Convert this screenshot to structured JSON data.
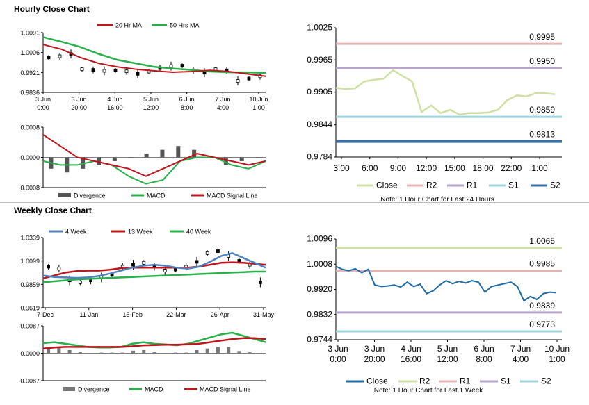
{
  "hourly": {
    "title": "Hourly Close Chart",
    "price": {
      "legend": [
        "20 Hr MA",
        "50 Hrs MA"
      ],
      "colors": {
        "ma20": "#c0141c",
        "ma50": "#28b04a",
        "bars": "#000000"
      },
      "yticks": [
        "1.0091",
        "1.0006",
        "0.9921",
        "0.9836"
      ],
      "ylim": [
        0.9836,
        1.0091
      ],
      "xticks": [
        [
          "3 Jun",
          "0:00"
        ],
        [
          "3 Jun",
          "20:00"
        ],
        [
          "4 Jun",
          "16:00"
        ],
        [
          "5 Jun",
          "12:00"
        ],
        [
          "6 Jun",
          "8:00"
        ],
        [
          "7 Jun",
          "4:00"
        ],
        [
          "10 Jun",
          "1:00"
        ]
      ],
      "ma50": [
        1.0072,
        1.0052,
        1.003,
        1.0,
        0.9975,
        0.996,
        0.9945,
        0.9938,
        0.9932,
        0.9925,
        0.9922,
        0.9921,
        0.992
      ],
      "ma20": [
        1.004,
        1.002,
        0.9985,
        0.996,
        0.9945,
        0.9935,
        0.9928,
        0.9922,
        0.9925,
        0.993,
        0.9925,
        0.9915,
        0.9905
      ],
      "close": [
        0.9985,
        0.999,
        1.0,
        0.9935,
        0.9932,
        0.9928,
        0.993,
        0.9926,
        0.9915,
        0.9925,
        0.994,
        0.9948,
        0.995,
        0.993,
        0.992,
        0.9935,
        0.993,
        0.9885,
        0.9895,
        0.9905
      ]
    },
    "macd": {
      "yticks": [
        "0.0008",
        "0.0000",
        "-0.0008"
      ],
      "ylim": [
        -0.0008,
        0.0008
      ],
      "legend": [
        "Divergence",
        "MACD",
        "MACD Signal Line"
      ],
      "colors": {
        "div": "#555555",
        "macd": "#28b04a",
        "signal": "#c0141c"
      },
      "macd": [
        -0.0001,
        -0.0002,
        -0.0002,
        -0.0001,
        -0.0002,
        -0.0005,
        -0.0007,
        -0.0006,
        -0.0001,
        0.0,
        0.0,
        -0.0002,
        -0.0003,
        -0.0001
      ],
      "signal": [
        0.0006,
        0.0003,
        0.0,
        -0.0001,
        -0.0002,
        -0.0003,
        -0.0005,
        -0.0003,
        -0.0001,
        0.0001,
        0.0,
        -0.0001,
        -0.0002,
        -0.0001
      ],
      "divergence": [
        -0.0003,
        -0.0004,
        -0.0003,
        -0.0002,
        -0.0001,
        0.0,
        0.0001,
        0.0002,
        0.0003,
        0.0002,
        0.0,
        -0.0002,
        -0.0001,
        0.0
      ]
    }
  },
  "day": {
    "yticks": [
      "1.0025",
      "0.9965",
      "0.9905",
      "0.9844",
      "0.9784"
    ],
    "ylim": [
      0.9784,
      1.0025
    ],
    "xticks": [
      "3:00",
      "6:00",
      "9:00",
      "12:00",
      "15:00",
      "18:00",
      "22:00",
      "1:00"
    ],
    "levels": [
      {
        "name": "R2",
        "value": 0.9995,
        "label": "0.9995",
        "color": "#e6b4b4"
      },
      {
        "name": "R1",
        "value": 0.995,
        "label": "0.9950",
        "color": "#b9a6cc"
      },
      {
        "name": "S1",
        "value": 0.9859,
        "label": "0.9859",
        "color": "#9fd3dd"
      },
      {
        "name": "S2",
        "value": 0.9813,
        "label": "0.9813",
        "color": "#3a6ea5"
      }
    ],
    "close_color": "#cfe0a4",
    "close": [
      0.9913,
      0.9911,
      0.9912,
      0.9925,
      0.9928,
      0.993,
      0.9946,
      0.9935,
      0.9925,
      0.9868,
      0.988,
      0.9866,
      0.9872,
      0.9863,
      0.9866,
      0.9866,
      0.9867,
      0.9872,
      0.989,
      0.9899,
      0.9897,
      0.9903,
      0.9903,
      0.9901
    ],
    "legend": [
      "Close",
      "R2",
      "R1",
      "S1",
      "S2"
    ],
    "note": "Note: 1 Hour Chart for Last 24 Hours"
  },
  "weekly": {
    "title": "Weekly Close Chart",
    "price": {
      "legend": [
        "4 Week",
        "13 Week",
        "40 Week"
      ],
      "colors": {
        "w4": "#4f81bd",
        "w13": "#c0141c",
        "w40": "#28b04a",
        "bars": "#000000"
      },
      "yticks": [
        "1.0339",
        "1.0099",
        "0.9859",
        "0.9619"
      ],
      "ylim": [
        0.9619,
        1.0339
      ],
      "xticks": [
        "7-Dec",
        "11-Jan",
        "15-Feb",
        "22-Mar",
        "26-Apr",
        "31-May"
      ],
      "w4": [
        0.995,
        0.9935,
        0.993,
        0.9925,
        0.993,
        0.9945,
        0.997,
        1.0,
        1.003,
        1.005,
        1.006,
        1.005,
        1.003,
        1.002,
        1.004,
        1.009,
        1.015,
        1.018,
        1.013,
        1.008,
        1.003
      ],
      "w13": [
        0.992,
        0.995,
        0.998,
        0.9995,
        1.0,
        1.0,
        1.001,
        1.0025,
        1.003,
        1.003,
        1.003,
        1.003,
        1.003,
        1.003,
        1.004,
        1.006,
        1.008,
        1.0085,
        1.008,
        1.007,
        1.006
      ],
      "w40": [
        0.988,
        0.989,
        0.99,
        0.991,
        0.9915,
        0.992,
        0.9925,
        0.993,
        0.9935,
        0.994,
        0.9945,
        0.995,
        0.9955,
        0.996,
        0.9965,
        0.997,
        0.9975,
        0.998,
        0.9985,
        0.999,
        0.999
      ],
      "close": [
        1.004,
        1.002,
        0.99,
        0.988,
        0.99,
        0.993,
        0.996,
        1.004,
        1.006,
        1.008,
        1.004,
        1.0,
        1.001,
        1.004,
        1.009,
        1.018,
        1.02,
        1.015,
        1.01,
        1.006,
        0.988
      ]
    },
    "macd": {
      "yticks": [
        "0.0087",
        "0.0000",
        "-0.0087"
      ],
      "ylim": [
        -0.0087,
        0.0087
      ],
      "legend": [
        "Divergence",
        "MACD",
        "MACD Signal Line"
      ],
      "colors": {
        "div": "#777777",
        "macd": "#28b04a",
        "signal": "#c0141c"
      },
      "macd": [
        0.0032,
        0.0035,
        0.003,
        0.0025,
        0.002,
        0.0018,
        0.0018,
        0.002,
        0.003,
        0.0035,
        0.003,
        0.0028,
        0.0025,
        0.003,
        0.004,
        0.005,
        0.006,
        0.0065,
        0.0055,
        0.0045,
        0.0035
      ],
      "signal": [
        0.0015,
        0.0018,
        0.002,
        0.002,
        0.002,
        0.002,
        0.002,
        0.002,
        0.0022,
        0.0025,
        0.0026,
        0.0027,
        0.0027,
        0.0028,
        0.003,
        0.0035,
        0.004,
        0.0045,
        0.0048,
        0.0048,
        0.0045
      ],
      "divergence": [
        0.0017,
        0.0017,
        0.001,
        0.0005,
        0.0001,
        0.0002,
        0.0002,
        0.0002,
        0.0008,
        0.001,
        0.0004,
        0.0001,
        0.0002,
        0.0002,
        0.001,
        0.0015,
        0.002,
        0.002,
        0.0007,
        0.0003,
        0.0001
      ]
    }
  },
  "week": {
    "yticks": [
      "1.0096",
      "1.0008",
      "0.9920",
      "0.9832",
      "0.9744"
    ],
    "ylim": [
      0.9744,
      1.0096
    ],
    "xticks": [
      [
        "3 Jun",
        "0:00"
      ],
      [
        "3 Jun",
        "20:00"
      ],
      [
        "4 Jun",
        "16:00"
      ],
      [
        "5 Jun",
        "12:00"
      ],
      [
        "6 Jun",
        "8:00"
      ],
      [
        "7 Jun",
        "4:00"
      ],
      [
        "10 Jun",
        "1:00"
      ]
    ],
    "levels": [
      {
        "name": "R2",
        "value": 1.0065,
        "label": "1.0065",
        "color": "#cfe0a4"
      },
      {
        "name": "R1",
        "value": 0.9985,
        "label": "0.9985",
        "color": "#e6b4b4"
      },
      {
        "name": "S1",
        "value": 0.9839,
        "label": "0.9839",
        "color": "#b9a6cc"
      },
      {
        "name": "S2",
        "value": 0.9773,
        "label": "0.9773",
        "color": "#9fd3dd"
      }
    ],
    "close_color": "#1f6aa5",
    "close": [
      1.0,
      0.999,
      0.9985,
      0.9992,
      0.9978,
      0.999,
      0.9935,
      0.993,
      0.9932,
      0.9935,
      0.9928,
      0.9945,
      0.993,
      0.9938,
      0.9905,
      0.9915,
      0.9935,
      0.995,
      0.994,
      0.9948,
      0.9942,
      0.995,
      0.9945,
      0.991,
      0.993,
      0.9935,
      0.994,
      0.9945,
      0.993,
      0.988,
      0.9895,
      0.9885,
      0.9905,
      0.991,
      0.9908
    ],
    "legend": [
      "Close",
      "R2",
      "R1",
      "S1",
      "S2"
    ],
    "note": "Note: 1 Hour Chart for Last 1 Week"
  }
}
